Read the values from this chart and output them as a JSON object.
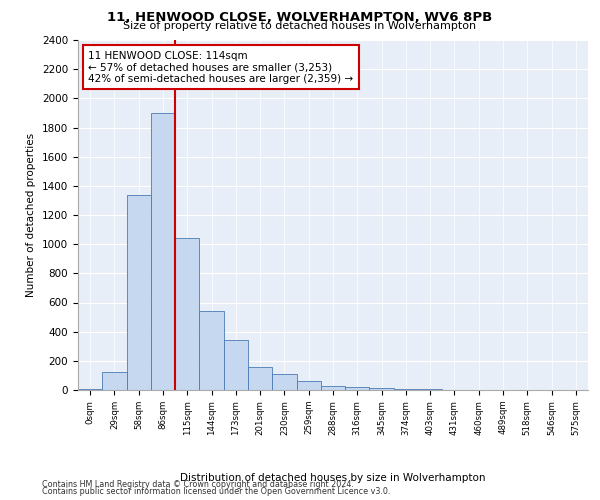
{
  "title1": "11, HENWOOD CLOSE, WOLVERHAMPTON, WV6 8PB",
  "title2": "Size of property relative to detached houses in Wolverhampton",
  "xlabel": "Distribution of detached houses by size in Wolverhampton",
  "ylabel": "Number of detached properties",
  "footnote1": "Contains HM Land Registry data © Crown copyright and database right 2024.",
  "footnote2": "Contains public sector information licensed under the Open Government Licence v3.0.",
  "annotation_line1": "11 HENWOOD CLOSE: 114sqm",
  "annotation_line2": "← 57% of detached houses are smaller (3,253)",
  "annotation_line3": "42% of semi-detached houses are larger (2,359) →",
  "bar_labels": [
    "0sqm",
    "29sqm",
    "58sqm",
    "86sqm",
    "115sqm",
    "144sqm",
    "173sqm",
    "201sqm",
    "230sqm",
    "259sqm",
    "288sqm",
    "316sqm",
    "345sqm",
    "374sqm",
    "403sqm",
    "431sqm",
    "460sqm",
    "489sqm",
    "518sqm",
    "546sqm",
    "575sqm"
  ],
  "bar_values": [
    8,
    125,
    1340,
    1900,
    1040,
    540,
    340,
    155,
    108,
    60,
    30,
    22,
    15,
    10,
    5,
    3,
    2,
    1,
    0,
    1,
    0
  ],
  "bar_color": "#c5d8f0",
  "bar_edge_color": "#4a7ab5",
  "vline_color": "#cc0000",
  "annotation_box_color": "#cc0000",
  "bg_color": "#e8eef7",
  "ylim": [
    0,
    2400
  ],
  "yticks": [
    0,
    200,
    400,
    600,
    800,
    1000,
    1200,
    1400,
    1600,
    1800,
    2000,
    2200,
    2400
  ]
}
